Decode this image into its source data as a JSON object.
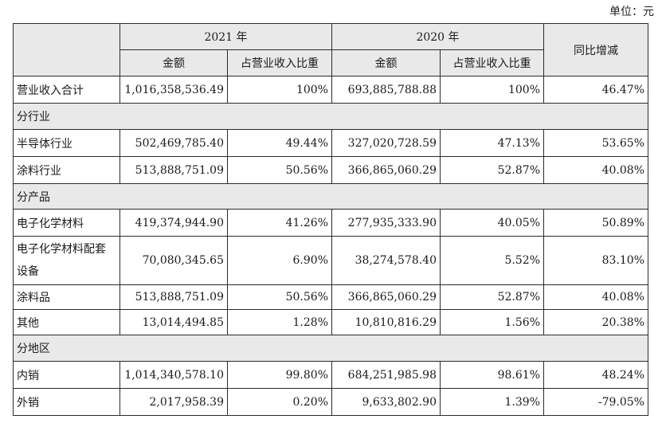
{
  "unit_label": "单位：元",
  "header": {
    "year_2021": "2021 年",
    "year_2020": "2020 年",
    "yoy": "同比增减",
    "amount": "金额",
    "share": "占营业收入比重"
  },
  "total": {
    "label": "营业收入合计",
    "amt_2021": "1,016,358,536.49",
    "pct_2021": "100%",
    "amt_2020": "693,885,788.88",
    "pct_2020": "100%",
    "yoy": "46.47%"
  },
  "sections": [
    {
      "title": "分行业",
      "rows": [
        {
          "label": "半导体行业",
          "amt_2021": "502,469,785.40",
          "pct_2021": "49.44%",
          "amt_2020": "327,020,728.59",
          "pct_2020": "47.13%",
          "yoy": "53.65%"
        },
        {
          "label": "涂料行业",
          "amt_2021": "513,888,751.09",
          "pct_2021": "50.56%",
          "amt_2020": "366,865,060.29",
          "pct_2020": "52.87%",
          "yoy": "40.08%"
        }
      ]
    },
    {
      "title": "分产品",
      "rows": [
        {
          "label": "电子化学材料",
          "amt_2021": "419,374,944.90",
          "pct_2021": "41.26%",
          "amt_2020": "277,935,333.90",
          "pct_2020": "40.05%",
          "yoy": "50.89%"
        },
        {
          "label": "电子化学材料配套设备",
          "amt_2021": "70,080,345.65",
          "pct_2021": "6.90%",
          "amt_2020": "38,274,578.40",
          "pct_2020": "5.52%",
          "yoy": "83.10%"
        },
        {
          "label": "涂料品",
          "amt_2021": "513,888,751.09",
          "pct_2021": "50.56%",
          "amt_2020": "366,865,060.29",
          "pct_2020": "52.87%",
          "yoy": "40.08%"
        },
        {
          "label": "其他",
          "amt_2021": "13,014,494.85",
          "pct_2021": "1.28%",
          "amt_2020": "10,810,816.29",
          "pct_2020": "1.56%",
          "yoy": "20.38%"
        }
      ]
    },
    {
      "title": "分地区",
      "rows": [
        {
          "label": "内销",
          "amt_2021": "1,014,340,578.10",
          "pct_2021": "99.80%",
          "amt_2020": "684,251,985.98",
          "pct_2020": "98.61%",
          "yoy": "48.24%"
        },
        {
          "label": "外销",
          "amt_2021": "2,017,958.39",
          "pct_2021": "0.20%",
          "amt_2020": "9,633,802.90",
          "pct_2020": "1.39%",
          "yoy": "-79.05%"
        }
      ]
    }
  ]
}
